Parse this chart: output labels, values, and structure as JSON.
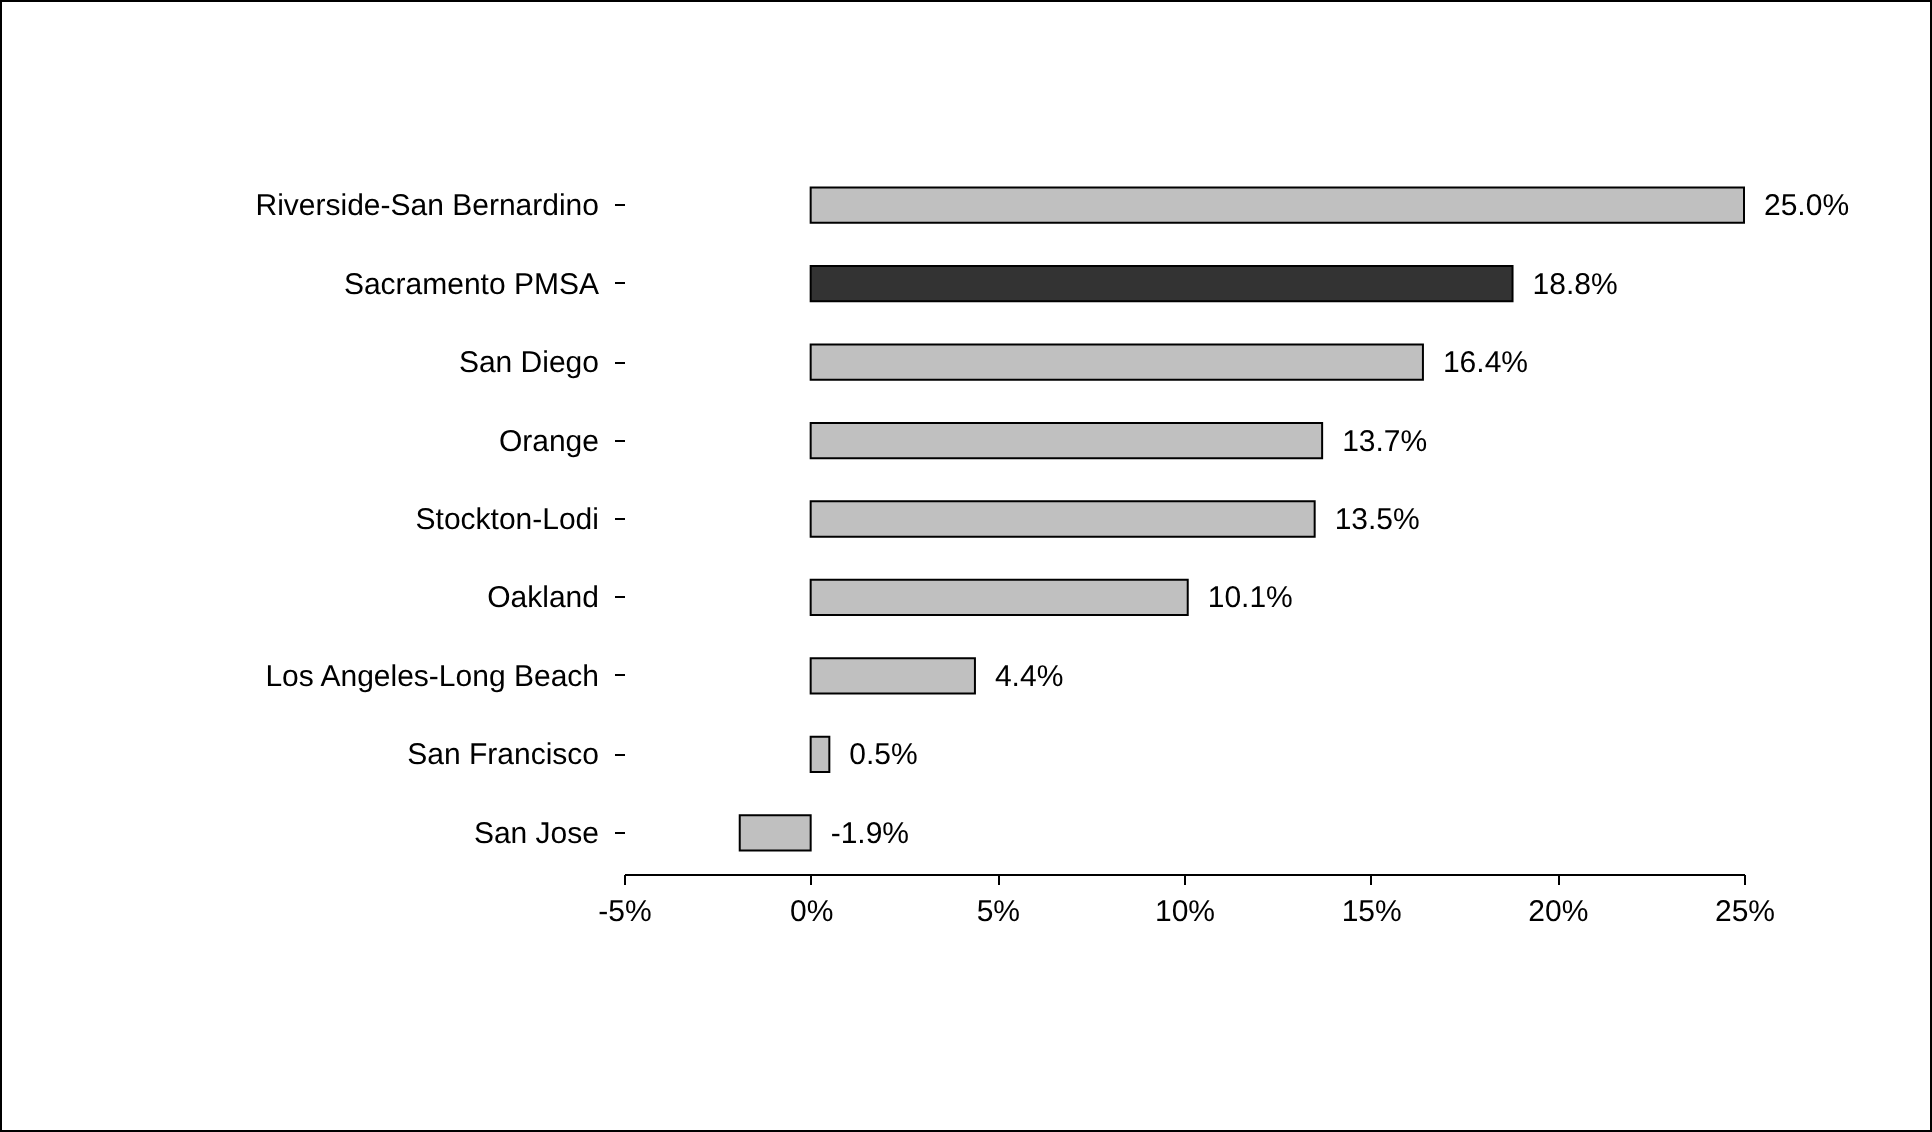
{
  "chart_data": {
    "type": "bar",
    "orientation": "horizontal",
    "categories": [
      "Riverside-San Bernardino",
      "Sacramento PMSA",
      "San Diego",
      "Orange",
      "Stockton-Lodi",
      "Oakland",
      "Los Angeles-Long Beach",
      "San Francisco",
      "San Jose"
    ],
    "values": [
      25.0,
      18.8,
      16.4,
      13.7,
      13.5,
      10.1,
      4.4,
      0.5,
      -1.9
    ],
    "colors": [
      "#c0c0c0",
      "#333333",
      "#c0c0c0",
      "#c0c0c0",
      "#c0c0c0",
      "#c0c0c0",
      "#c0c0c0",
      "#c0c0c0",
      "#c0c0c0"
    ],
    "value_labels": [
      "25.0%",
      "18.8%",
      "16.4%",
      "13.7%",
      "13.5%",
      "10.1%",
      "4.4%",
      "0.5%",
      "-1.9%"
    ],
    "xlim": [
      -5,
      25
    ],
    "xticks": [
      {
        "value": -5,
        "label": "-5%"
      },
      {
        "value": 0,
        "label": "0%"
      },
      {
        "value": 5,
        "label": "5%"
      },
      {
        "value": 10,
        "label": "10%"
      },
      {
        "value": 15,
        "label": "15%"
      },
      {
        "value": 20,
        "label": "20%"
      },
      {
        "value": 25,
        "label": "25%"
      }
    ],
    "grid": false
  }
}
